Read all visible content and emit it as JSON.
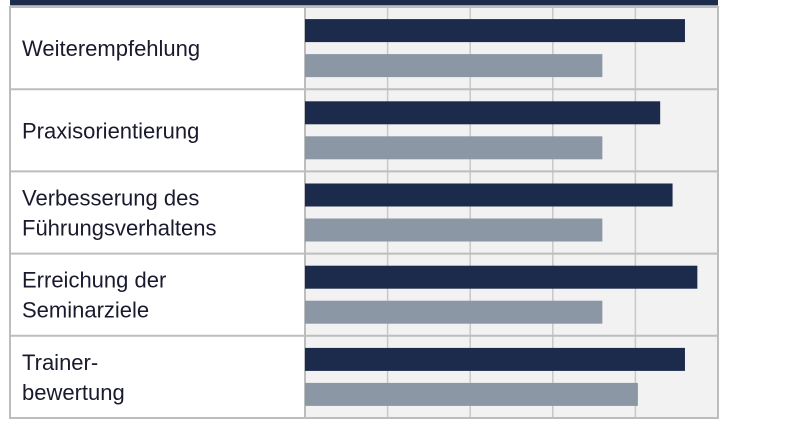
{
  "chart_data": {
    "type": "bar",
    "orientation": "horizontal",
    "categories": [
      [
        "Weiterempfehlung"
      ],
      [
        "Praxisorientierung"
      ],
      [
        "Verbesserung des",
        "Führungsverhaltens"
      ],
      [
        "Erreichung der",
        "Seminarziele"
      ],
      [
        "Trainer-",
        "bewertung"
      ]
    ],
    "series": [
      {
        "values": [
          4.6,
          4.3,
          4.45,
          4.75,
          4.6
        ]
      },
      {
        "values": [
          3.6,
          3.6,
          3.6,
          3.6,
          4.03
        ]
      }
    ],
    "xlim": [
      0,
      5
    ],
    "grid": true,
    "legend": "none",
    "title": "",
    "xlabel": "",
    "ylabel": ""
  },
  "colors": {
    "series_1": "#1c2a4c",
    "series_2": "#8c97a6",
    "header_bar": "#1c2a4c",
    "plot_bg": "#f2f2f2",
    "grid": "#c8c8c8",
    "border": "#bdbdbd"
  }
}
